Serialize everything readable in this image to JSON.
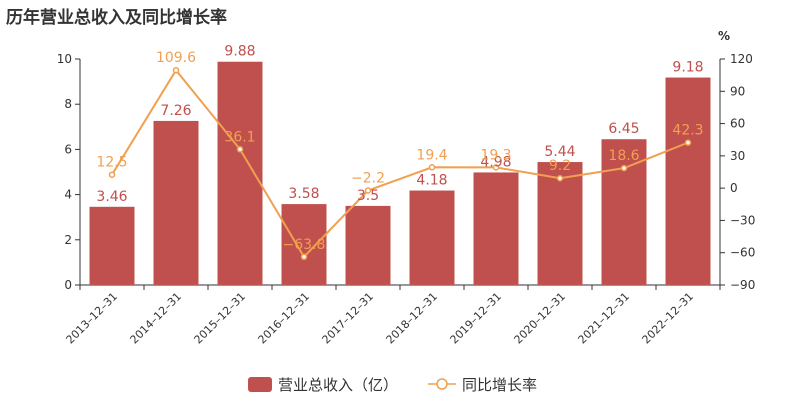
{
  "title": "历年营业总收入及同比增长率",
  "chart_data": {
    "type": "bar",
    "categories": [
      "2013-12-31",
      "2014-12-31",
      "2015-12-31",
      "2016-12-31",
      "2017-12-31",
      "2018-12-31",
      "2019-12-31",
      "2020-12-31",
      "2021-12-31",
      "2022-12-31"
    ],
    "series": [
      {
        "name": "营业总收入（亿）",
        "type": "bar",
        "axis": "left",
        "values": [
          3.46,
          7.26,
          9.88,
          3.58,
          3.5,
          4.18,
          4.98,
          5.44,
          6.45,
          9.18
        ],
        "labels": [
          "3.46",
          "7.26",
          "9.88",
          "3.58",
          "3.5",
          "4.18",
          "4.98",
          "5.44",
          "6.45",
          "9.18"
        ],
        "color": "#c0504d"
      },
      {
        "name": "同比增长率",
        "type": "line",
        "axis": "right",
        "values": [
          12.5,
          109.6,
          36.1,
          -63.8,
          -2.2,
          19.4,
          19.3,
          9.2,
          18.6,
          42.3
        ],
        "labels": [
          "12.5",
          "109.6",
          "36.1",
          "-63.8",
          "-2.2",
          "19.4",
          "19.3",
          "9.2",
          "18.6",
          "42.3"
        ],
        "color": "#f0a050"
      }
    ],
    "y_left": {
      "ylim": [
        0,
        10
      ],
      "ticks": [
        "0",
        "2",
        "4",
        "6",
        "8",
        "10"
      ]
    },
    "y_right": {
      "ylim": [
        -90,
        120
      ],
      "ticks": [
        "-90",
        "-60",
        "-30",
        "0",
        "30",
        "60",
        "90",
        "120"
      ],
      "unit": "%"
    },
    "legend": {
      "position": "bottom"
    },
    "grid": false
  }
}
